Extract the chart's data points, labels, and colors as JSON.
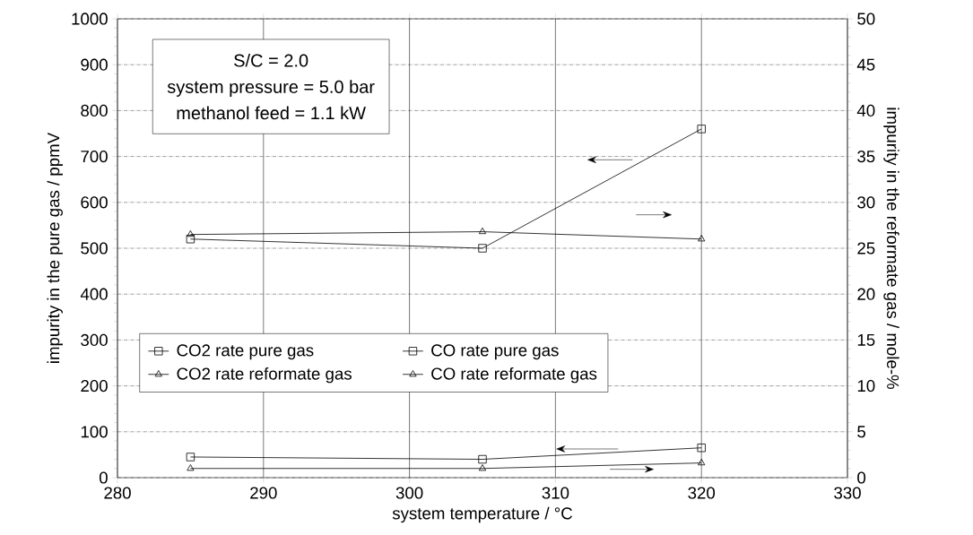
{
  "chart_data": {
    "type": "line",
    "xlabel": "system temperature / °C",
    "ylabel": "impurity in the pure gas / ppmV",
    "y2label": "impurity in the reformate gas / mole-%",
    "x": [
      285,
      305,
      320
    ],
    "series": [
      {
        "name": "CO2 rate pure gas",
        "color": "#000000",
        "marker": "square",
        "values": [
          520,
          500,
          760
        ]
      },
      {
        "name": "CO rate pure gas",
        "color": "#000000",
        "marker": "square",
        "values": [
          45,
          40,
          65
        ]
      },
      {
        "name": "CO2 rate reformate gas",
        "color": "#000000",
        "marker": "triangle",
        "axis": "y2",
        "values": [
          26.5,
          26.8,
          26
        ]
      },
      {
        "name": "CO rate reformate gas",
        "color": "#000000",
        "marker": "triangle",
        "axis": "y2",
        "values": [
          1.0,
          1.0,
          1.6
        ]
      }
    ],
    "xlim": [
      280,
      330
    ],
    "xticks": [
      280,
      290,
      300,
      310,
      320,
      330
    ],
    "ylim": [
      0,
      1000
    ],
    "yticks": [
      0,
      100,
      200,
      300,
      400,
      500,
      600,
      700,
      800,
      900,
      1000
    ],
    "y2lim": [
      0,
      50
    ],
    "y2ticks": [
      0,
      5,
      10,
      15,
      20,
      25,
      30,
      35,
      40,
      45,
      50
    ],
    "annotations": [
      "S/C = 2.0",
      "system pressure = 5.0 bar",
      "methanol feed = 1.1 kW"
    ],
    "grid": true,
    "legend": "left",
    "line_style": "solid"
  }
}
